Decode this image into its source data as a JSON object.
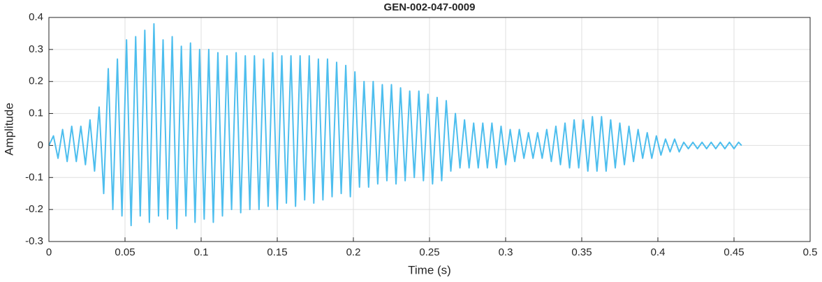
{
  "chart_data": {
    "type": "line",
    "title": "GEN-002-047-0009",
    "x_label": "Time (s)",
    "y_label": "Amplitude",
    "xlim": [
      0,
      0.5
    ],
    "ylim": [
      -0.3,
      0.4
    ],
    "xticks": [
      0,
      0.05,
      0.1,
      0.15,
      0.2,
      0.25,
      0.3,
      0.35,
      0.4,
      0.45,
      0.5
    ],
    "yticks": [
      -0.3,
      -0.2,
      -0.1,
      0,
      0.1,
      0.2,
      0.3,
      0.4
    ],
    "grid": true,
    "x": [
      0,
      0.003,
      0.006,
      0.009,
      0.012,
      0.015,
      0.018,
      0.021,
      0.024,
      0.027,
      0.03,
      0.033,
      0.036,
      0.039,
      0.042,
      0.045,
      0.048,
      0.051,
      0.054,
      0.057,
      0.06,
      0.063,
      0.066,
      0.069,
      0.072,
      0.075,
      0.078,
      0.081,
      0.084,
      0.087,
      0.09,
      0.093,
      0.096,
      0.099,
      0.102,
      0.105,
      0.108,
      0.111,
      0.114,
      0.117,
      0.12,
      0.123,
      0.126,
      0.129,
      0.132,
      0.135,
      0.138,
      0.141,
      0.144,
      0.147,
      0.15,
      0.153,
      0.156,
      0.159,
      0.162,
      0.165,
      0.168,
      0.171,
      0.174,
      0.177,
      0.18,
      0.183,
      0.186,
      0.189,
      0.192,
      0.195,
      0.198,
      0.201,
      0.204,
      0.207,
      0.21,
      0.213,
      0.216,
      0.219,
      0.222,
      0.225,
      0.228,
      0.231,
      0.234,
      0.237,
      0.24,
      0.243,
      0.246,
      0.249,
      0.252,
      0.255,
      0.258,
      0.261,
      0.264,
      0.267,
      0.27,
      0.273,
      0.276,
      0.279,
      0.282,
      0.285,
      0.288,
      0.291,
      0.294,
      0.297,
      0.3,
      0.303,
      0.306,
      0.309,
      0.312,
      0.315,
      0.318,
      0.321,
      0.324,
      0.327,
      0.33,
      0.333,
      0.336,
      0.339,
      0.342,
      0.345,
      0.348,
      0.351,
      0.354,
      0.357,
      0.36,
      0.363,
      0.366,
      0.369,
      0.372,
      0.375,
      0.378,
      0.381,
      0.384,
      0.387,
      0.39,
      0.393,
      0.396,
      0.399,
      0.402,
      0.405,
      0.408,
      0.411,
      0.414,
      0.417,
      0.42,
      0.423,
      0.426,
      0.429,
      0.432,
      0.435,
      0.438,
      0.441,
      0.444,
      0.447,
      0.45,
      0.453,
      0.455
    ],
    "series": [
      {
        "color": "#4dbeee",
        "values": [
          0,
          0.03,
          -0.04,
          0.05,
          -0.05,
          0.06,
          -0.05,
          0.06,
          -0.06,
          0.08,
          -0.08,
          0.12,
          -0.15,
          0.24,
          -0.2,
          0.27,
          -0.22,
          0.33,
          -0.25,
          0.34,
          -0.22,
          0.36,
          -0.24,
          0.38,
          -0.22,
          0.33,
          -0.23,
          0.34,
          -0.26,
          0.31,
          -0.22,
          0.32,
          -0.24,
          0.3,
          -0.23,
          0.3,
          -0.24,
          0.29,
          -0.22,
          0.28,
          -0.2,
          0.29,
          -0.21,
          0.28,
          -0.2,
          0.28,
          -0.2,
          0.27,
          -0.19,
          0.29,
          -0.2,
          0.28,
          -0.18,
          0.28,
          -0.19,
          0.28,
          -0.17,
          0.28,
          -0.18,
          0.27,
          -0.17,
          0.27,
          -0.16,
          0.26,
          -0.15,
          0.25,
          -0.16,
          0.23,
          -0.13,
          0.2,
          -0.13,
          0.2,
          -0.12,
          0.19,
          -0.11,
          0.19,
          -0.12,
          0.18,
          -0.11,
          0.17,
          -0.1,
          0.17,
          -0.11,
          0.16,
          -0.12,
          0.15,
          -0.11,
          0.14,
          -0.08,
          0.1,
          -0.07,
          0.08,
          -0.07,
          0.07,
          -0.07,
          0.07,
          -0.07,
          0.07,
          -0.07,
          0.06,
          -0.06,
          0.05,
          -0.05,
          0.05,
          -0.04,
          0.04,
          -0.04,
          0.04,
          -0.04,
          0.05,
          -0.05,
          0.06,
          -0.06,
          0.07,
          -0.07,
          0.08,
          -0.07,
          0.08,
          -0.08,
          0.09,
          -0.08,
          0.09,
          -0.08,
          0.08,
          -0.07,
          0.07,
          -0.06,
          0.06,
          -0.05,
          0.05,
          -0.04,
          0.04,
          -0.04,
          0.03,
          -0.03,
          0.02,
          -0.02,
          0.02,
          -0.02,
          0.01,
          -0.01,
          0.01,
          -0.01,
          0.01,
          -0.01,
          0.01,
          -0.01,
          0.01,
          -0.01,
          0.01,
          -0.01,
          0.01,
          0
        ]
      }
    ]
  }
}
